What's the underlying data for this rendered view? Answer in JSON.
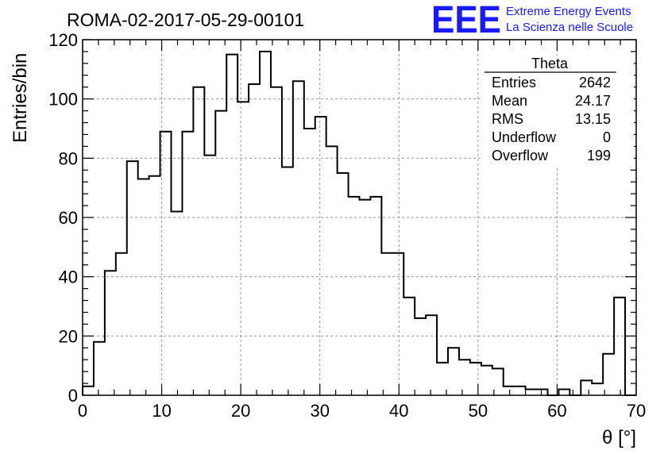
{
  "title": "ROMA-02-2017-05-29-00101",
  "logo": {
    "mark": "EEE",
    "line1": "Extreme Energy Events",
    "line2": "La Scienza nelle Scuole",
    "color": "#1a1aff"
  },
  "stats_box": {
    "title": "Theta",
    "rows": [
      {
        "label": "Entries",
        "value": "2642"
      },
      {
        "label": "Mean",
        "value": "24.17"
      },
      {
        "label": "RMS",
        "value": "13.15"
      },
      {
        "label": "Underflow",
        "value": "0"
      },
      {
        "label": "Overflow",
        "value": "199"
      }
    ]
  },
  "chart_data": {
    "type": "bar",
    "style": "step histogram",
    "title": "ROMA-02-2017-05-29-00101",
    "xlabel": "θ [°]",
    "ylabel": "Entries/bin",
    "xlim": [
      0,
      70
    ],
    "ylim": [
      0,
      120
    ],
    "xticks": [
      "0",
      "10",
      "20",
      "30",
      "40",
      "50",
      "60",
      "70"
    ],
    "yticks": [
      "0",
      "20",
      "40",
      "60",
      "80",
      "100",
      "120"
    ],
    "grid": true,
    "legend": "top-right statistics box",
    "bin_width": 1.4,
    "bin_edges_start": 0,
    "values": [
      3,
      18,
      42,
      48,
      79,
      73,
      74,
      89,
      62,
      89,
      104,
      81,
      96,
      115,
      99,
      105,
      116,
      104,
      77,
      106,
      90,
      94,
      84,
      75,
      67,
      66,
      67,
      48,
      48,
      33,
      26,
      27,
      11,
      16,
      12,
      11,
      10,
      9,
      3,
      3,
      2,
      2,
      0,
      2,
      0,
      5,
      4,
      14,
      33,
      0
    ]
  }
}
